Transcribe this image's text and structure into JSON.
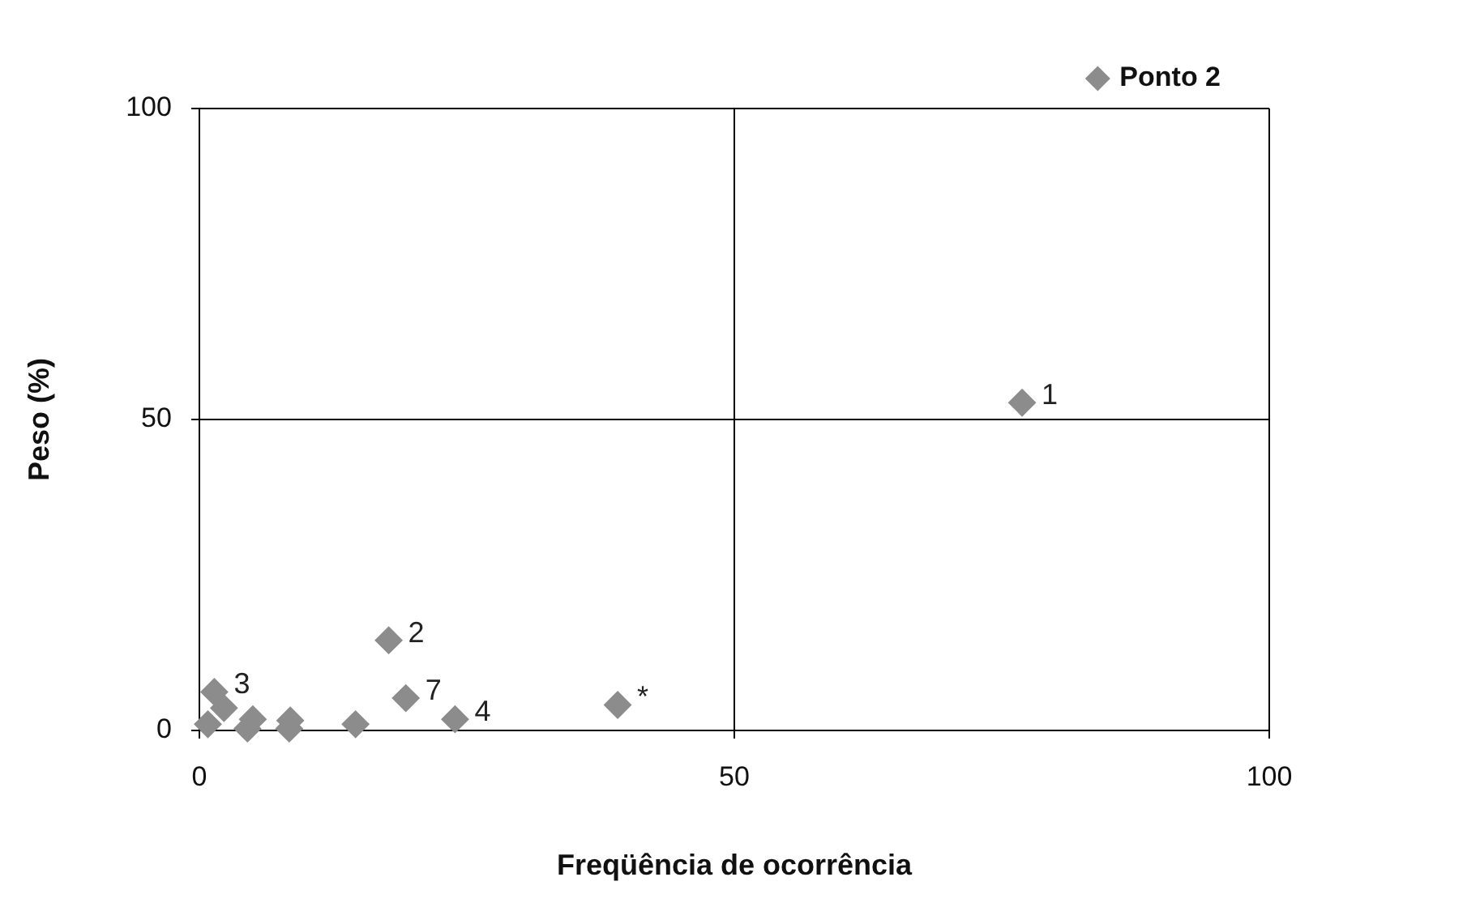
{
  "chart_data": {
    "type": "scatter",
    "xlabel": "Freqüência de ocorrência",
    "ylabel": "Peso (%)",
    "xlim": [
      0,
      100
    ],
    "ylim": [
      0,
      100
    ],
    "xticks": [
      0,
      50,
      100
    ],
    "yticks": [
      0,
      50,
      100
    ],
    "grid": true,
    "legend": "top right",
    "marker": "diamond",
    "series": [
      {
        "name": "Ponto 2",
        "color": "#8c8c8c",
        "x": [
          76.9,
          17.7,
          19.3,
          23.9,
          39.1,
          1.4,
          2.3,
          0.8,
          5.0,
          4.5,
          8.5,
          8.4,
          14.6
        ],
        "values": [
          52.7,
          14.5,
          5.2,
          1.8,
          4.1,
          6.2,
          3.6,
          1.0,
          1.8,
          0.3,
          1.6,
          0.3,
          1.0
        ]
      }
    ],
    "annotations": [
      {
        "text": "1",
        "x": 76.9,
        "y": 52.7
      },
      {
        "text": "2",
        "x": 17.7,
        "y": 14.5
      },
      {
        "text": "3",
        "x": 1.4,
        "y": 6.2
      },
      {
        "text": "7",
        "x": 19.3,
        "y": 5.2
      },
      {
        "text": "4",
        "x": 23.9,
        "y": 1.8
      },
      {
        "text": "*",
        "x": 39.1,
        "y": 4.1
      }
    ]
  }
}
